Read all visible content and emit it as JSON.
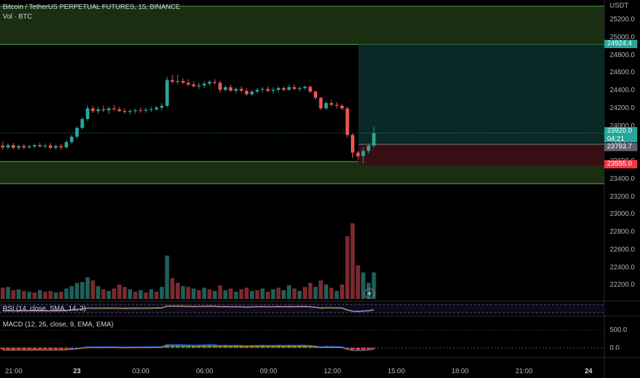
{
  "header": {
    "symbol_title": "Bitcoin / TetherUS PERPETUAL FUTURES, 15, BINANCE",
    "volume_legend": "Vol · BTC"
  },
  "price_axis": {
    "currency": "USDT",
    "labels": [
      "25200.0",
      "25000.0",
      "24800.0",
      "24600.0",
      "24400.0",
      "24200.0",
      "24000.0",
      "23800.0",
      "23600.0",
      "23400.0",
      "23200.0",
      "23000.0",
      "22800.0",
      "22600.0",
      "22400.0",
      "22200.0"
    ],
    "tags": {
      "target": "24924.4",
      "current_price": "23920.0",
      "countdown": "04:21",
      "entry": "23793.7",
      "stop": "23555.0"
    }
  },
  "time_axis": {
    "labels": [
      "21:00",
      "23",
      "03:00",
      "06:00",
      "09:00",
      "12:00",
      "15:00",
      "18:00",
      "21:00",
      "24"
    ]
  },
  "indicators": {
    "rsi_legend": "RSI (14, close, SMA, 14, 2)",
    "macd_legend": "MACD (12, 26, close, 9, EMA, EMA)",
    "macd_labels": [
      "500.0",
      "0.0"
    ]
  },
  "colors": {
    "up": "#26a69a",
    "down": "#ef5350",
    "zone_fill": "#1b2e12",
    "zone_line": "#4caf50",
    "profit_zone": "#0b2a27",
    "loss_zone": "#3a0f14",
    "accent_tag": "#26a69a",
    "stop_tag": "#f23645",
    "entry_tag": "#5d606b"
  },
  "icons": {
    "flash": "flash-icon"
  },
  "chart_data": {
    "type": "candlestick",
    "x_labels": [
      "21:00",
      "23",
      "03:00",
      "06:00",
      "09:00",
      "12:00",
      "15:00",
      "18:00",
      "21:00",
      "24"
    ],
    "price_range": [
      22050,
      25300
    ],
    "candles": [
      {
        "o": 23780,
        "h": 23830,
        "l": 23730,
        "c": 23760
      },
      {
        "o": 23760,
        "h": 23800,
        "l": 23740,
        "c": 23785
      },
      {
        "o": 23785,
        "h": 23810,
        "l": 23740,
        "c": 23755
      },
      {
        "o": 23755,
        "h": 23790,
        "l": 23730,
        "c": 23775
      },
      {
        "o": 23775,
        "h": 23800,
        "l": 23740,
        "c": 23760
      },
      {
        "o": 23760,
        "h": 23790,
        "l": 23745,
        "c": 23770
      },
      {
        "o": 23770,
        "h": 23800,
        "l": 23750,
        "c": 23785
      },
      {
        "o": 23785,
        "h": 23810,
        "l": 23760,
        "c": 23770
      },
      {
        "o": 23770,
        "h": 23800,
        "l": 23750,
        "c": 23780
      },
      {
        "o": 23780,
        "h": 23810,
        "l": 23740,
        "c": 23755
      },
      {
        "o": 23755,
        "h": 23790,
        "l": 23735,
        "c": 23775
      },
      {
        "o": 23775,
        "h": 23800,
        "l": 23730,
        "c": 23760
      },
      {
        "o": 23760,
        "h": 23840,
        "l": 23745,
        "c": 23820
      },
      {
        "o": 23820,
        "h": 23900,
        "l": 23800,
        "c": 23880
      },
      {
        "o": 23880,
        "h": 24000,
        "l": 23860,
        "c": 23980
      },
      {
        "o": 23980,
        "h": 24100,
        "l": 23960,
        "c": 24080
      },
      {
        "o": 24080,
        "h": 24230,
        "l": 24060,
        "c": 24200
      },
      {
        "o": 24200,
        "h": 24230,
        "l": 24150,
        "c": 24170
      },
      {
        "o": 24170,
        "h": 24220,
        "l": 24140,
        "c": 24190
      },
      {
        "o": 24190,
        "h": 24230,
        "l": 24160,
        "c": 24180
      },
      {
        "o": 24180,
        "h": 24220,
        "l": 24140,
        "c": 24200
      },
      {
        "o": 24200,
        "h": 24240,
        "l": 24170,
        "c": 24190
      },
      {
        "o": 24190,
        "h": 24220,
        "l": 24160,
        "c": 24170
      },
      {
        "o": 24170,
        "h": 24200,
        "l": 24140,
        "c": 24160
      },
      {
        "o": 24160,
        "h": 24190,
        "l": 24130,
        "c": 24170
      },
      {
        "o": 24170,
        "h": 24200,
        "l": 24140,
        "c": 24180
      },
      {
        "o": 24180,
        "h": 24210,
        "l": 24150,
        "c": 24175
      },
      {
        "o": 24175,
        "h": 24210,
        "l": 24150,
        "c": 24185
      },
      {
        "o": 24185,
        "h": 24220,
        "l": 24160,
        "c": 24190
      },
      {
        "o": 24190,
        "h": 24230,
        "l": 24170,
        "c": 24210
      },
      {
        "o": 24210,
        "h": 24260,
        "l": 24180,
        "c": 24230
      },
      {
        "o": 24230,
        "h": 24560,
        "l": 24210,
        "c": 24520
      },
      {
        "o": 24520,
        "h": 24580,
        "l": 24480,
        "c": 24500
      },
      {
        "o": 24500,
        "h": 24580,
        "l": 24470,
        "c": 24510
      },
      {
        "o": 24510,
        "h": 24540,
        "l": 24480,
        "c": 24490
      },
      {
        "o": 24490,
        "h": 24530,
        "l": 24450,
        "c": 24470
      },
      {
        "o": 24470,
        "h": 24510,
        "l": 24440,
        "c": 24450
      },
      {
        "o": 24450,
        "h": 24490,
        "l": 24420,
        "c": 24460
      },
      {
        "o": 24460,
        "h": 24510,
        "l": 24430,
        "c": 24480
      },
      {
        "o": 24480,
        "h": 24520,
        "l": 24460,
        "c": 24500
      },
      {
        "o": 24500,
        "h": 24530,
        "l": 24470,
        "c": 24490
      },
      {
        "o": 24490,
        "h": 24510,
        "l": 24380,
        "c": 24410
      },
      {
        "o": 24410,
        "h": 24460,
        "l": 24390,
        "c": 24440
      },
      {
        "o": 24440,
        "h": 24470,
        "l": 24390,
        "c": 24400
      },
      {
        "o": 24400,
        "h": 24440,
        "l": 24370,
        "c": 24420
      },
      {
        "o": 24420,
        "h": 24450,
        "l": 24380,
        "c": 24400
      },
      {
        "o": 24400,
        "h": 24430,
        "l": 24340,
        "c": 24360
      },
      {
        "o": 24360,
        "h": 24410,
        "l": 24340,
        "c": 24390
      },
      {
        "o": 24390,
        "h": 24430,
        "l": 24370,
        "c": 24410
      },
      {
        "o": 24410,
        "h": 24440,
        "l": 24380,
        "c": 24420
      },
      {
        "o": 24420,
        "h": 24450,
        "l": 24380,
        "c": 24400
      },
      {
        "o": 24400,
        "h": 24440,
        "l": 24370,
        "c": 24410
      },
      {
        "o": 24410,
        "h": 24450,
        "l": 24380,
        "c": 24430
      },
      {
        "o": 24430,
        "h": 24450,
        "l": 24390,
        "c": 24410
      },
      {
        "o": 24410,
        "h": 24470,
        "l": 24400,
        "c": 24440
      },
      {
        "o": 24440,
        "h": 24470,
        "l": 24410,
        "c": 24420
      },
      {
        "o": 24420,
        "h": 24450,
        "l": 24390,
        "c": 24430
      },
      {
        "o": 24430,
        "h": 24460,
        "l": 24410,
        "c": 24445
      },
      {
        "o": 24445,
        "h": 24460,
        "l": 24370,
        "c": 24390
      },
      {
        "o": 24390,
        "h": 24400,
        "l": 24300,
        "c": 24320
      },
      {
        "o": 24320,
        "h": 24330,
        "l": 24180,
        "c": 24200
      },
      {
        "o": 24200,
        "h": 24280,
        "l": 24180,
        "c": 24260
      },
      {
        "o": 24260,
        "h": 24300,
        "l": 24220,
        "c": 24240
      },
      {
        "o": 24240,
        "h": 24270,
        "l": 24200,
        "c": 24230
      },
      {
        "o": 24230,
        "h": 24250,
        "l": 24180,
        "c": 24200
      },
      {
        "o": 24200,
        "h": 24220,
        "l": 23870,
        "c": 23900
      },
      {
        "o": 23900,
        "h": 23920,
        "l": 23640,
        "c": 23700
      },
      {
        "o": 23700,
        "h": 23720,
        "l": 23620,
        "c": 23660
      },
      {
        "o": 23660,
        "h": 23760,
        "l": 23580,
        "c": 23720
      },
      {
        "o": 23720,
        "h": 23800,
        "l": 23690,
        "c": 23780
      },
      {
        "o": 23780,
        "h": 23990,
        "l": 23760,
        "c": 23920
      }
    ],
    "volume": [
      {
        "v": 140,
        "up": false
      },
      {
        "v": 150,
        "up": true
      },
      {
        "v": 110,
        "up": false
      },
      {
        "v": 120,
        "up": true
      },
      {
        "v": 100,
        "up": false
      },
      {
        "v": 90,
        "up": true
      },
      {
        "v": 80,
        "up": false
      },
      {
        "v": 110,
        "up": true
      },
      {
        "v": 90,
        "up": false
      },
      {
        "v": 100,
        "up": false
      },
      {
        "v": 80,
        "up": true
      },
      {
        "v": 90,
        "up": false
      },
      {
        "v": 130,
        "up": true
      },
      {
        "v": 160,
        "up": true
      },
      {
        "v": 200,
        "up": true
      },
      {
        "v": 210,
        "up": true
      },
      {
        "v": 270,
        "up": true
      },
      {
        "v": 230,
        "up": false
      },
      {
        "v": 160,
        "up": true
      },
      {
        "v": 120,
        "up": false
      },
      {
        "v": 100,
        "up": true
      },
      {
        "v": 130,
        "up": false
      },
      {
        "v": 180,
        "up": false
      },
      {
        "v": 150,
        "up": false
      },
      {
        "v": 120,
        "up": true
      },
      {
        "v": 90,
        "up": false
      },
      {
        "v": 110,
        "up": true
      },
      {
        "v": 80,
        "up": false
      },
      {
        "v": 120,
        "up": true
      },
      {
        "v": 90,
        "up": false
      },
      {
        "v": 150,
        "up": true
      },
      {
        "v": 540,
        "up": true
      },
      {
        "v": 260,
        "up": false
      },
      {
        "v": 200,
        "up": false
      },
      {
        "v": 160,
        "up": true
      },
      {
        "v": 150,
        "up": false
      },
      {
        "v": 130,
        "up": true
      },
      {
        "v": 110,
        "up": false
      },
      {
        "v": 140,
        "up": true
      },
      {
        "v": 120,
        "up": false
      },
      {
        "v": 100,
        "up": true
      },
      {
        "v": 170,
        "up": false
      },
      {
        "v": 110,
        "up": true
      },
      {
        "v": 130,
        "up": false
      },
      {
        "v": 90,
        "up": true
      },
      {
        "v": 120,
        "up": false
      },
      {
        "v": 140,
        "up": false
      },
      {
        "v": 100,
        "up": true
      },
      {
        "v": 110,
        "up": false
      },
      {
        "v": 130,
        "up": true
      },
      {
        "v": 90,
        "up": false
      },
      {
        "v": 120,
        "up": true
      },
      {
        "v": 140,
        "up": false
      },
      {
        "v": 110,
        "up": true
      },
      {
        "v": 170,
        "up": true
      },
      {
        "v": 130,
        "up": false
      },
      {
        "v": 100,
        "up": true
      },
      {
        "v": 150,
        "up": false
      },
      {
        "v": 200,
        "up": false
      },
      {
        "v": 150,
        "up": true
      },
      {
        "v": 230,
        "up": false
      },
      {
        "v": 180,
        "up": true
      },
      {
        "v": 140,
        "up": false
      },
      {
        "v": 100,
        "up": true
      },
      {
        "v": 180,
        "up": false
      },
      {
        "v": 780,
        "up": false
      },
      {
        "v": 940,
        "up": false
      },
      {
        "v": 420,
        "up": false
      },
      {
        "v": 330,
        "up": true
      },
      {
        "v": 200,
        "up": true
      },
      {
        "v": 330,
        "up": true
      }
    ],
    "levels": {
      "zone_top": [
        24924.4,
        25340
      ],
      "zone_bottom": [
        23350,
        23600
      ],
      "target": 24924.4,
      "entry": 23793.7,
      "stop": 23555.0,
      "current": 23920.0
    },
    "position_tool": {
      "entry": 23793.7,
      "target": 24924.4,
      "stop": 23555.0
    },
    "macd": {
      "ticks": [
        500,
        0
      ]
    }
  }
}
